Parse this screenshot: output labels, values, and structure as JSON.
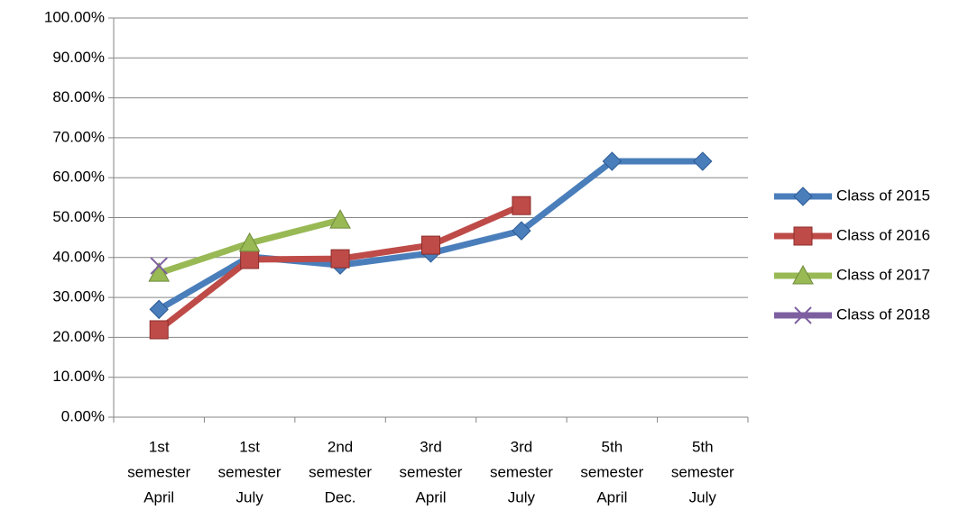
{
  "chart_data": {
    "type": "line",
    "categories": [
      [
        "1st",
        "semester",
        "April"
      ],
      [
        "1st",
        "semester",
        "July"
      ],
      [
        "2nd",
        "semester",
        "Dec."
      ],
      [
        "3rd",
        "semester",
        "April"
      ],
      [
        "3rd",
        "semester",
        "July"
      ],
      [
        "5th",
        "semester",
        "April"
      ],
      [
        "5th",
        "semester",
        "July"
      ]
    ],
    "series": [
      {
        "name": "Class of 2015",
        "color": "#4a7ebb",
        "marker": "diamond",
        "values": [
          27,
          40.2,
          38.1,
          41.1,
          46.7,
          64.1,
          64.1
        ]
      },
      {
        "name": "Class of 2016",
        "color": "#be4b48",
        "marker": "square",
        "values": [
          21.9,
          39.5,
          39.7,
          43.1,
          53,
          null,
          null
        ]
      },
      {
        "name": "Class of 2017",
        "color": "#98b954",
        "marker": "triangle",
        "values": [
          36.1,
          43.6,
          49.4,
          null,
          null,
          null,
          null
        ]
      },
      {
        "name": "Class of 2018",
        "color": "#7d5fa0",
        "marker": "x",
        "values": [
          37.9,
          null,
          null,
          null,
          null,
          null,
          null
        ]
      }
    ],
    "ylim": [
      0,
      100
    ],
    "yticks": [
      {
        "value": 0,
        "label": "0.00%"
      },
      {
        "value": 10,
        "label": "10.00%"
      },
      {
        "value": 20,
        "label": "20.00%"
      },
      {
        "value": 30,
        "label": "30.00%"
      },
      {
        "value": 40,
        "label": "40.00%"
      },
      {
        "value": 50,
        "label": "50.00%"
      },
      {
        "value": 60,
        "label": "60.00%"
      },
      {
        "value": 70,
        "label": "70.00%"
      },
      {
        "value": 80,
        "label": "80.00%"
      },
      {
        "value": 90,
        "label": "90.00%"
      },
      {
        "value": 100,
        "label": "100.00%"
      }
    ],
    "grid": true,
    "legend": "right"
  }
}
